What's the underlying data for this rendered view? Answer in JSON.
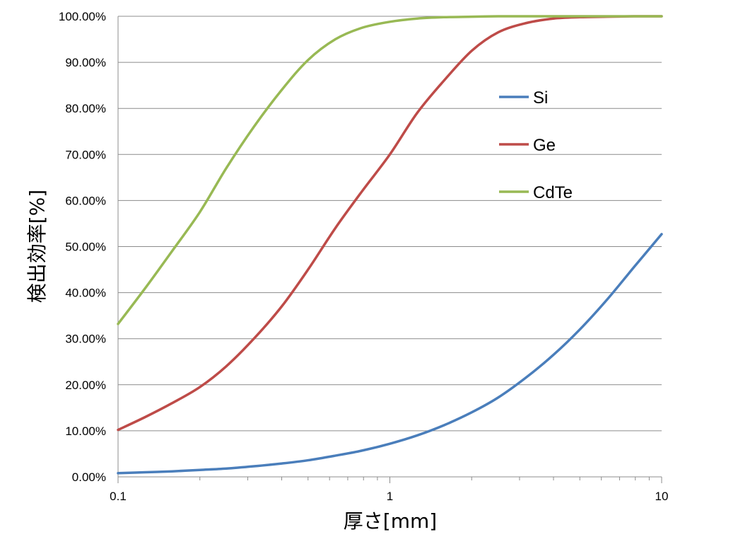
{
  "chart_data": {
    "type": "line",
    "title": "",
    "xlabel": "厚さ[mm]",
    "ylabel": "検出効率[%]",
    "x_scale": "log",
    "xlim": [
      0.1,
      10
    ],
    "ylim": [
      0,
      100
    ],
    "x_ticks": [
      "0.1",
      "1",
      "10"
    ],
    "y_ticks": [
      "0.00%",
      "10.00%",
      "20.00%",
      "30.00%",
      "40.00%",
      "50.00%",
      "60.00%",
      "70.00%",
      "80.00%",
      "90.00%",
      "100.00%"
    ],
    "grid": "horizontal",
    "legend_position": "right",
    "x": [
      0.1,
      0.126,
      0.158,
      0.2,
      0.25,
      0.316,
      0.4,
      0.5,
      0.63,
      0.79,
      1.0,
      1.26,
      1.58,
      2.0,
      2.5,
      3.16,
      4.0,
      5.0,
      6.3,
      7.9,
      10.0
    ],
    "series": [
      {
        "name": "Si",
        "color": "#4a7ebb",
        "values": [
          0.8,
          1.0,
          1.2,
          1.5,
          1.8,
          2.3,
          2.9,
          3.6,
          4.6,
          5.7,
          7.2,
          9.0,
          11.2,
          14.0,
          17.2,
          21.5,
          26.5,
          32.0,
          38.5,
          45.5,
          52.7
        ]
      },
      {
        "name": "Ge",
        "color": "#be4b48",
        "values": [
          10.2,
          13.0,
          16.0,
          19.5,
          24.0,
          30.0,
          37.0,
          45.0,
          54.0,
          62.0,
          70.0,
          79.0,
          86.0,
          92.5,
          96.5,
          98.5,
          99.5,
          99.8,
          99.9,
          100.0,
          100.0
        ]
      },
      {
        "name": "CdTe",
        "color": "#98b954",
        "values": [
          33.2,
          41.0,
          49.0,
          57.5,
          67.0,
          76.0,
          84.0,
          90.5,
          95.0,
          97.5,
          98.8,
          99.5,
          99.8,
          99.9,
          100.0,
          100.0,
          100.0,
          100.0,
          100.0,
          100.0,
          100.0
        ]
      }
    ]
  }
}
